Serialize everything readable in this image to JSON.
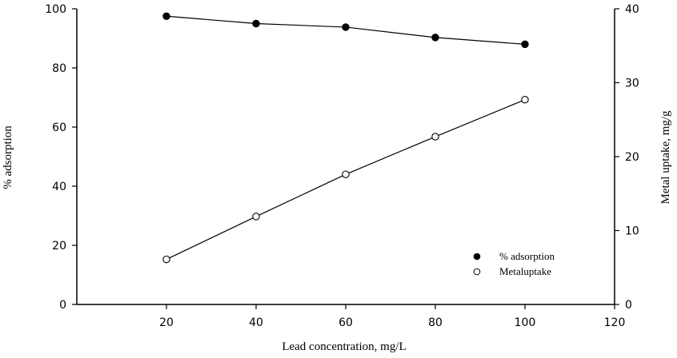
{
  "chart_data": {
    "type": "line",
    "x": [
      20,
      40,
      60,
      80,
      100
    ],
    "xlabel": "Lead concentration, mg/L",
    "xlim": [
      0,
      120
    ],
    "xticks": [
      20,
      40,
      60,
      80,
      100,
      120
    ],
    "ylabel_left": "% adsorption",
    "ylim_left": [
      0,
      100
    ],
    "yticks_left": [
      0,
      20,
      40,
      60,
      80,
      100
    ],
    "ylabel_right": "Metal uptake, mg/g",
    "ylim_right": [
      0,
      40
    ],
    "yticks_right": [
      0,
      10,
      20,
      30,
      40
    ],
    "grid": false,
    "legend_position": "bottom-right",
    "series": [
      {
        "name": "% adsorption",
        "axis": "left",
        "marker": "filled-circle",
        "values": [
          97.5,
          95,
          93.8,
          90.3,
          88
        ]
      },
      {
        "name": "Metaluptake",
        "axis": "right",
        "marker": "open-circle",
        "values": [
          6.1,
          11.9,
          17.6,
          22.7,
          27.7
        ]
      }
    ]
  }
}
